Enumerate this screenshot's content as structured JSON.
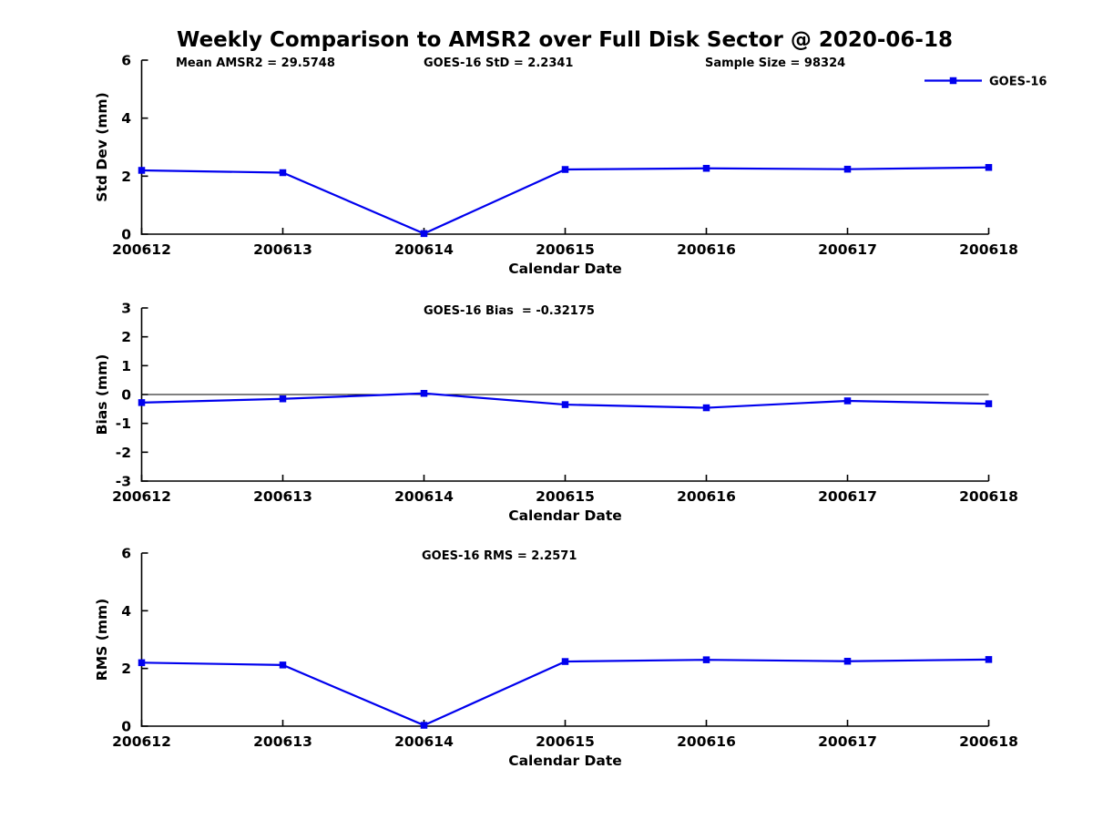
{
  "title": "Weekly Comparison to AMSR2 over Full Disk Sector @ 2020-06-18",
  "colors": {
    "series": "#0000ee",
    "axis": "#000000",
    "zero_line": "#000000",
    "text": "#000000",
    "background": "#ffffff"
  },
  "chart_data": [
    {
      "type": "line",
      "name": "std-dev",
      "categories": [
        "200612",
        "200613",
        "200614",
        "200615",
        "200616",
        "200617",
        "200618"
      ],
      "series": [
        {
          "name": "GOES-16",
          "values": [
            2.2,
            2.12,
            0.02,
            2.23,
            2.27,
            2.24,
            2.3
          ]
        }
      ],
      "xlabel": "Calendar Date",
      "ylabel": "Std Dev (mm)",
      "ylim": [
        0,
        6
      ],
      "yticks": [
        0,
        2,
        4,
        6
      ],
      "zero_line": false,
      "grid": false,
      "legend": {
        "visible": true,
        "label": "GOES-16",
        "position": "top-right"
      },
      "annotations": [
        {
          "text": "Mean AMSR2 = 29.5748",
          "x": 193
        },
        {
          "text": "GOES-16 StD = 2.2341",
          "x": 465
        },
        {
          "text": "Sample Size = 98324",
          "x": 774
        }
      ]
    },
    {
      "type": "line",
      "name": "bias",
      "categories": [
        "200612",
        "200613",
        "200614",
        "200615",
        "200616",
        "200617",
        "200618"
      ],
      "series": [
        {
          "name": "GOES-16",
          "values": [
            -0.28,
            -0.15,
            0.04,
            -0.35,
            -0.46,
            -0.22,
            -0.32
          ]
        }
      ],
      "xlabel": "Calendar Date",
      "ylabel": "Bias (mm)",
      "ylim": [
        -3,
        3
      ],
      "yticks": [
        -3,
        -2,
        -1,
        0,
        1,
        2,
        3
      ],
      "zero_line": true,
      "grid": false,
      "legend": {
        "visible": false,
        "label": "GOES-16",
        "position": "top-right"
      },
      "annotations": [
        {
          "text": "GOES-16 Bias  = -0.32175",
          "x": 465
        }
      ]
    },
    {
      "type": "line",
      "name": "rms",
      "categories": [
        "200612",
        "200613",
        "200614",
        "200615",
        "200616",
        "200617",
        "200618"
      ],
      "series": [
        {
          "name": "GOES-16",
          "values": [
            2.2,
            2.12,
            0.03,
            2.24,
            2.3,
            2.25,
            2.31
          ]
        }
      ],
      "xlabel": "Calendar Date",
      "ylabel": "RMS (mm)",
      "ylim": [
        0,
        6
      ],
      "yticks": [
        0,
        2,
        4,
        6
      ],
      "zero_line": false,
      "grid": false,
      "legend": {
        "visible": false,
        "label": "GOES-16",
        "position": "top-right"
      },
      "annotations": [
        {
          "text": "GOES-16 RMS = 2.2571",
          "x": 463
        }
      ]
    }
  ]
}
